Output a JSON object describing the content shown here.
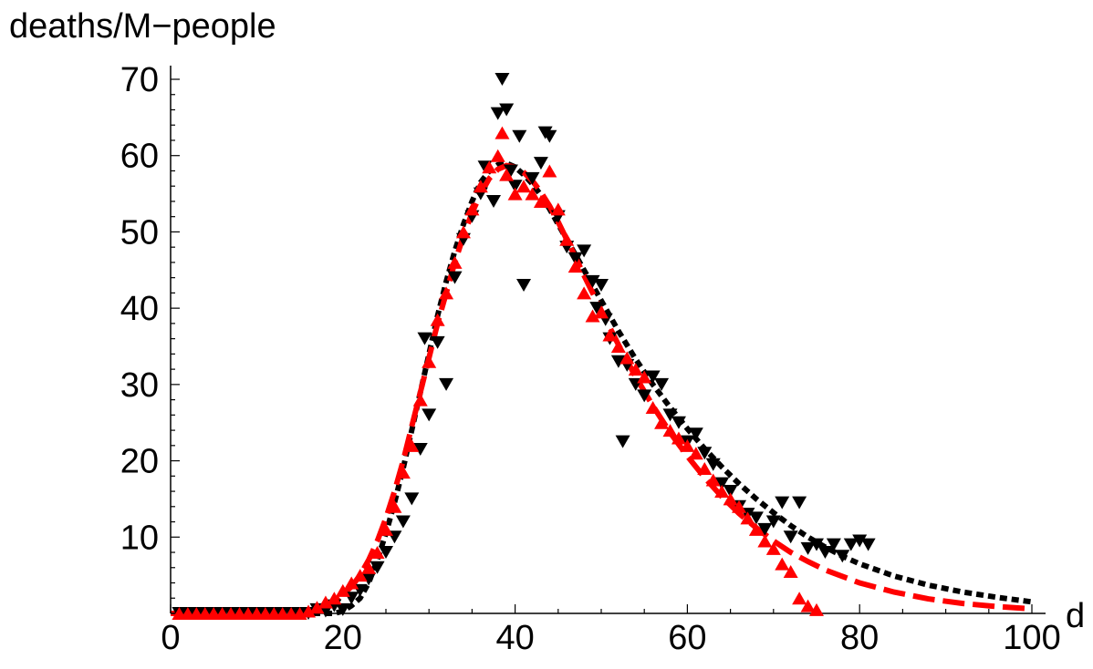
{
  "chart_data": {
    "type": "scatter",
    "xlabel": "d",
    "ylabel": "deaths/M−people",
    "xlim": [
      0,
      100
    ],
    "ylim": [
      0,
      70
    ],
    "x_ticks": [
      0,
      20,
      40,
      60,
      80,
      100
    ],
    "y_ticks": [
      10,
      20,
      30,
      40,
      50,
      60,
      70
    ],
    "grid": false,
    "series": [
      {
        "kind": "points",
        "marker": "triangle-down",
        "color": "#000000",
        "points": [
          [
            1,
            0
          ],
          [
            2,
            0
          ],
          [
            3,
            0
          ],
          [
            4,
            0
          ],
          [
            5,
            0
          ],
          [
            6,
            0
          ],
          [
            7,
            0
          ],
          [
            8,
            0
          ],
          [
            9,
            0
          ],
          [
            10,
            0
          ],
          [
            11,
            0
          ],
          [
            12,
            0
          ],
          [
            13,
            0
          ],
          [
            14,
            0
          ],
          [
            15,
            0
          ],
          [
            16,
            0
          ],
          [
            17,
            0.5
          ],
          [
            18,
            0.3
          ],
          [
            19,
            1
          ],
          [
            20,
            0.5
          ],
          [
            21,
            2
          ],
          [
            22,
            3
          ],
          [
            23,
            4.5
          ],
          [
            24,
            6
          ],
          [
            25,
            8
          ],
          [
            26,
            10
          ],
          [
            27,
            12
          ],
          [
            28,
            15
          ],
          [
            29,
            21.5
          ],
          [
            29.5,
            36
          ],
          [
            30,
            26
          ],
          [
            31,
            35.5
          ],
          [
            32,
            30
          ],
          [
            33,
            44
          ],
          [
            34,
            49
          ],
          [
            35,
            52
          ],
          [
            36,
            55
          ],
          [
            36.5,
            58.5
          ],
          [
            37.5,
            54
          ],
          [
            38,
            65.5
          ],
          [
            38.5,
            70
          ],
          [
            39,
            66
          ],
          [
            39.5,
            58
          ],
          [
            40,
            56
          ],
          [
            40.5,
            62.5
          ],
          [
            41,
            43
          ],
          [
            42,
            57
          ],
          [
            43,
            59
          ],
          [
            43.5,
            63
          ],
          [
            44,
            62.5
          ],
          [
            45,
            52
          ],
          [
            46,
            48
          ],
          [
            47,
            46.5
          ],
          [
            48,
            47.5
          ],
          [
            49,
            43.5
          ],
          [
            49.5,
            40
          ],
          [
            50,
            43
          ],
          [
            50.5,
            38.5
          ],
          [
            51,
            36
          ],
          [
            52,
            33
          ],
          [
            52.5,
            22.5
          ],
          [
            53,
            32.5
          ],
          [
            54,
            30
          ],
          [
            55,
            28.5
          ],
          [
            56,
            31
          ],
          [
            57,
            30
          ],
          [
            58,
            26
          ],
          [
            59,
            25
          ],
          [
            60,
            22.5
          ],
          [
            61,
            23.5
          ],
          [
            62,
            21
          ],
          [
            63,
            19.5
          ],
          [
            64,
            17
          ],
          [
            65,
            16
          ],
          [
            66,
            14
          ],
          [
            67,
            13
          ],
          [
            68,
            12.5
          ],
          [
            69,
            11
          ],
          [
            70,
            12
          ],
          [
            71,
            14.5
          ],
          [
            72,
            10
          ],
          [
            73,
            14.5
          ],
          [
            74,
            8.5
          ],
          [
            75,
            9
          ],
          [
            76,
            8
          ],
          [
            77,
            9
          ],
          [
            78,
            7.5
          ],
          [
            79,
            9
          ],
          [
            80,
            9.5
          ],
          [
            81,
            9
          ]
        ]
      },
      {
        "kind": "points",
        "marker": "triangle-up",
        "color": "#ff0000",
        "points": [
          [
            1,
            0
          ],
          [
            2,
            0
          ],
          [
            3,
            0
          ],
          [
            4,
            0
          ],
          [
            5,
            0
          ],
          [
            6,
            0
          ],
          [
            7,
            0
          ],
          [
            8,
            0
          ],
          [
            9,
            0
          ],
          [
            10,
            0
          ],
          [
            11,
            0
          ],
          [
            12,
            0
          ],
          [
            13,
            0
          ],
          [
            14,
            0
          ],
          [
            15,
            0
          ],
          [
            16,
            0.3
          ],
          [
            17,
            0.8
          ],
          [
            18,
            1.5
          ],
          [
            19,
            2
          ],
          [
            20,
            3
          ],
          [
            21,
            4
          ],
          [
            22,
            5
          ],
          [
            23,
            6
          ],
          [
            24,
            8
          ],
          [
            25,
            11
          ],
          [
            26,
            14
          ],
          [
            27,
            18.5
          ],
          [
            28,
            22
          ],
          [
            29,
            28
          ],
          [
            30,
            33
          ],
          [
            31,
            38.5
          ],
          [
            32,
            42
          ],
          [
            33,
            46
          ],
          [
            34,
            50
          ],
          [
            35,
            53
          ],
          [
            36,
            56
          ],
          [
            37,
            58.5
          ],
          [
            38,
            60
          ],
          [
            38.5,
            63
          ],
          [
            39,
            57.5
          ],
          [
            40,
            55
          ],
          [
            41,
            56
          ],
          [
            42,
            55
          ],
          [
            43,
            54
          ],
          [
            44,
            58
          ],
          [
            45,
            53
          ],
          [
            46,
            49
          ],
          [
            47,
            45.5
          ],
          [
            48,
            42
          ],
          [
            49,
            39
          ],
          [
            50,
            39.5
          ],
          [
            51,
            36.5
          ],
          [
            52,
            35
          ],
          [
            53,
            33.5
          ],
          [
            54,
            32
          ],
          [
            55,
            31
          ],
          [
            56,
            27
          ],
          [
            57,
            25
          ],
          [
            58,
            24
          ],
          [
            59,
            23
          ],
          [
            60,
            22
          ],
          [
            61,
            21
          ],
          [
            62,
            19
          ],
          [
            63,
            17.5
          ],
          [
            64,
            16
          ],
          [
            65,
            15
          ],
          [
            66,
            14
          ],
          [
            67,
            12.5
          ],
          [
            68,
            11
          ],
          [
            69,
            9.5
          ],
          [
            70,
            8.5
          ],
          [
            71,
            6.5
          ],
          [
            72,
            5.5
          ],
          [
            73,
            2
          ],
          [
            74,
            1
          ],
          [
            75,
            0.5
          ]
        ]
      },
      {
        "kind": "curve",
        "style": "dotted",
        "color": "#000000",
        "points": [
          [
            0,
            0
          ],
          [
            19,
            0
          ],
          [
            20,
            0.3
          ],
          [
            21,
            1
          ],
          [
            22,
            2
          ],
          [
            23,
            4
          ],
          [
            24,
            7
          ],
          [
            25,
            10.5
          ],
          [
            26,
            14.5
          ],
          [
            27,
            19
          ],
          [
            28,
            24
          ],
          [
            29,
            29
          ],
          [
            30,
            34
          ],
          [
            31,
            39
          ],
          [
            32,
            43.5
          ],
          [
            33,
            47.5
          ],
          [
            34,
            51
          ],
          [
            35,
            54
          ],
          [
            36,
            56.5
          ],
          [
            37,
            58
          ],
          [
            38,
            58.8
          ],
          [
            39,
            59
          ],
          [
            40,
            58.5
          ],
          [
            41,
            57.5
          ],
          [
            42,
            56.3
          ],
          [
            43,
            54.8
          ],
          [
            44,
            53
          ],
          [
            45,
            51
          ],
          [
            46,
            49
          ],
          [
            47,
            47
          ],
          [
            48,
            45
          ],
          [
            49,
            43
          ],
          [
            50,
            41
          ],
          [
            52,
            37
          ],
          [
            54,
            33.3
          ],
          [
            56,
            30
          ],
          [
            58,
            27
          ],
          [
            60,
            24.2
          ],
          [
            62,
            21.6
          ],
          [
            64,
            19.2
          ],
          [
            66,
            17
          ],
          [
            68,
            15
          ],
          [
            70,
            13.2
          ],
          [
            72,
            11.5
          ],
          [
            74,
            10
          ],
          [
            76,
            8.7
          ],
          [
            78,
            7.5
          ],
          [
            80,
            6.5
          ],
          [
            84,
            4.9
          ],
          [
            88,
            3.7
          ],
          [
            92,
            2.8
          ],
          [
            96,
            2.1
          ],
          [
            100,
            1.5
          ]
        ]
      },
      {
        "kind": "curve",
        "style": "dashed",
        "color": "#ff0000",
        "points": [
          [
            0,
            0
          ],
          [
            15,
            0
          ],
          [
            17,
            0.5
          ],
          [
            19,
            1.5
          ],
          [
            20,
            2.5
          ],
          [
            21,
            3.5
          ],
          [
            22,
            5
          ],
          [
            23,
            7
          ],
          [
            24,
            9.5
          ],
          [
            25,
            12.5
          ],
          [
            26,
            16
          ],
          [
            27,
            20
          ],
          [
            28,
            24.5
          ],
          [
            29,
            29
          ],
          [
            30,
            33.5
          ],
          [
            31,
            38
          ],
          [
            32,
            42
          ],
          [
            33,
            46
          ],
          [
            34,
            49.5
          ],
          [
            35,
            52.5
          ],
          [
            36,
            55
          ],
          [
            37,
            57
          ],
          [
            38,
            58.2
          ],
          [
            39,
            58.7
          ],
          [
            40,
            58.5
          ],
          [
            41,
            57.8
          ],
          [
            42,
            56.7
          ],
          [
            43,
            55.2
          ],
          [
            44,
            53.4
          ],
          [
            45,
            51.3
          ],
          [
            46,
            49
          ],
          [
            47,
            46.7
          ],
          [
            48,
            44.3
          ],
          [
            49,
            42
          ],
          [
            50,
            39.7
          ],
          [
            52,
            35.2
          ],
          [
            54,
            31
          ],
          [
            56,
            27.2
          ],
          [
            58,
            23.7
          ],
          [
            60,
            20.6
          ],
          [
            62,
            17.8
          ],
          [
            64,
            15.3
          ],
          [
            66,
            13.1
          ],
          [
            68,
            11.2
          ],
          [
            70,
            9.5
          ],
          [
            72,
            8
          ],
          [
            74,
            6.8
          ],
          [
            76,
            5.7
          ],
          [
            80,
            4
          ],
          [
            84,
            2.8
          ],
          [
            88,
            1.9
          ],
          [
            92,
            1.3
          ],
          [
            96,
            0.9
          ],
          [
            100,
            0.6
          ]
        ]
      }
    ]
  }
}
